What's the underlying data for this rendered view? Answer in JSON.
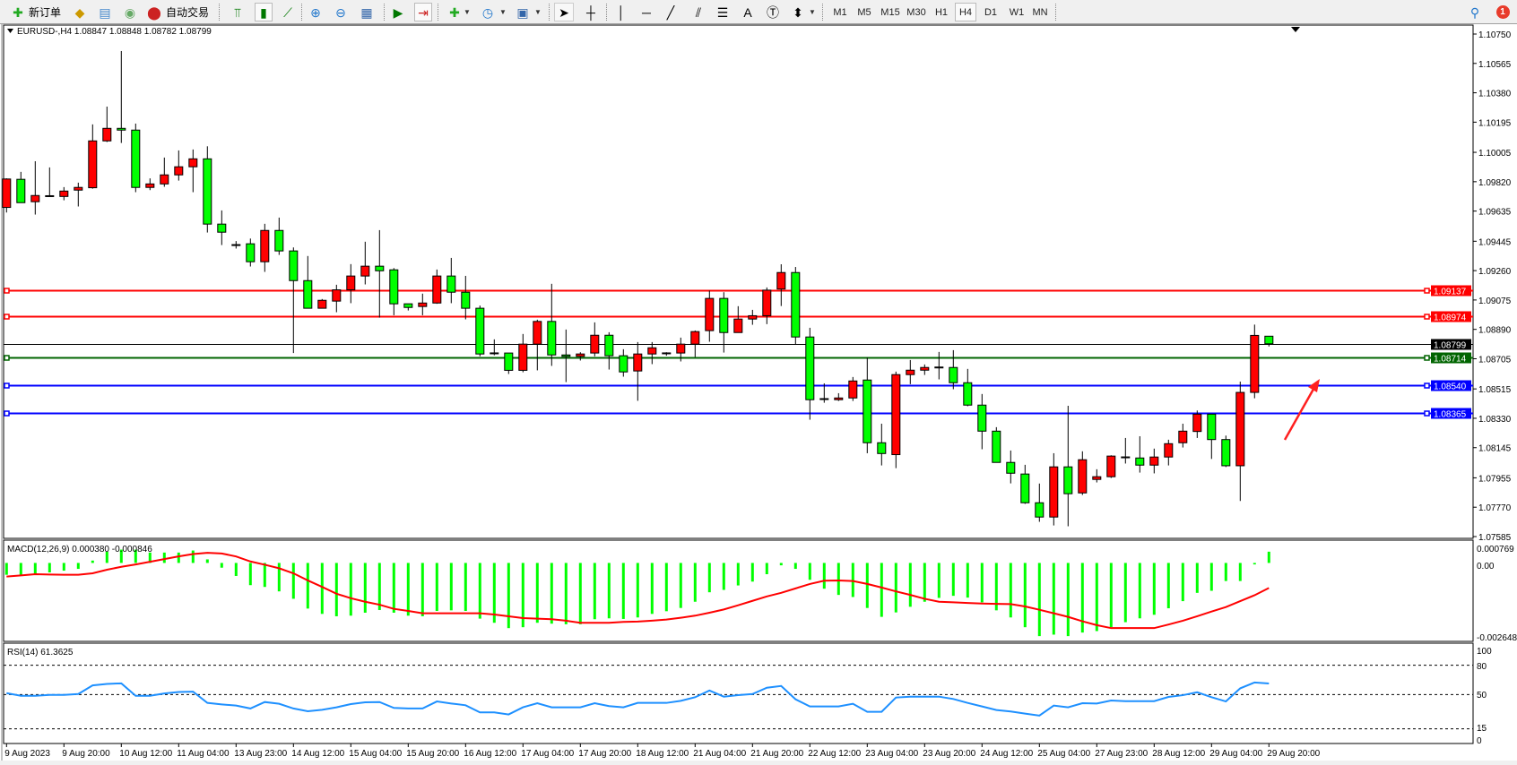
{
  "toolbar": {
    "new_order": "新订单",
    "auto_trading": "自动交易",
    "timeframes": [
      "M1",
      "M5",
      "M15",
      "M30",
      "H1",
      "H4",
      "D1",
      "W1",
      "MN"
    ],
    "active_timeframe": "H4",
    "notification_count": "1",
    "icons": [
      "new-order-icon",
      "history-center-icon",
      "data-window-icon",
      "signals-icon",
      "auto-trading-icon",
      "bar-chart-icon",
      "candlestick-icon",
      "line-chart-icon",
      "zoom-in-icon",
      "zoom-out-icon",
      "tile-windows-icon",
      "auto-scroll-icon",
      "chart-shift-icon",
      "indicators-icon",
      "periods-icon",
      "templates-icon",
      "cursor-icon",
      "crosshair-icon",
      "vertical-line-icon",
      "horizontal-line-icon",
      "trendline-icon",
      "equidistant-channel-icon",
      "fibonacci-icon",
      "text-icon",
      "text-label-icon",
      "arrows-icon",
      "search-icon",
      "notification-icon"
    ]
  },
  "colors": {
    "bull": "#ff0000",
    "bear": "#00ff00",
    "macd_hist": "#00ff00",
    "signal": "#ff0000",
    "rsi": "#1e90ff"
  },
  "chart_data": [
    {
      "type": "candlestick",
      "title": "EURUSD-,H4  1.08847 1.08848 1.08782 1.08799",
      "symbol": "EURUSD-",
      "timeframe": "H4",
      "ylim": [
        1.07585,
        1.1075
      ],
      "y_ticks": [
        "1.10750",
        "1.10565",
        "1.10380",
        "1.10195",
        "1.10005",
        "1.09820",
        "1.09635",
        "1.09445",
        "1.09260",
        "1.09075",
        "1.08890",
        "1.08705",
        "1.08515",
        "1.08330",
        "1.08145",
        "1.07955",
        "1.07770",
        "1.07585"
      ],
      "x_tick_labels": [
        "9 Aug 2023",
        "9 Aug 20:00",
        "10 Aug 12:00",
        "11 Aug 04:00",
        "13 Aug 23:00",
        "14 Aug 12:00",
        "15 Aug 04:00",
        "15 Aug 20:00",
        "16 Aug 12:00",
        "17 Aug 04:00",
        "17 Aug 20:00",
        "18 Aug 12:00",
        "21 Aug 04:00",
        "21 Aug 20:00",
        "22 Aug 12:00",
        "23 Aug 04:00",
        "23 Aug 20:00",
        "24 Aug 12:00",
        "25 Aug 04:00",
        "27 Aug 23:00",
        "28 Aug 12:00",
        "29 Aug 04:00",
        "29 Aug 20:00"
      ],
      "x_tick_every_bars": 4,
      "ohlc": [
        [
          1.09658,
          1.09841,
          1.09626,
          1.09837
        ],
        [
          1.09835,
          1.09882,
          1.09688,
          1.09688
        ],
        [
          1.09694,
          1.09949,
          1.09613,
          1.09733
        ],
        [
          1.09729,
          1.0991,
          1.09729,
          1.09729
        ],
        [
          1.09727,
          1.09786,
          1.09703,
          1.09761
        ],
        [
          1.09767,
          1.09814,
          1.09664,
          1.09784
        ],
        [
          1.09782,
          1.10181,
          1.09776,
          1.10077
        ],
        [
          1.10077,
          1.10293,
          1.1007,
          1.10156
        ],
        [
          1.10156,
          1.10643,
          1.10064,
          1.10145
        ],
        [
          1.10145,
          1.10186,
          1.09754,
          1.09784
        ],
        [
          1.09784,
          1.09841,
          1.09767,
          1.09806
        ],
        [
          1.09806,
          1.09972,
          1.09788,
          1.09863
        ],
        [
          1.09863,
          1.10017,
          1.09827,
          1.09914
        ],
        [
          1.09914,
          1.10023,
          1.09754,
          1.09964
        ],
        [
          1.09964,
          1.10043,
          1.095,
          1.09553
        ],
        [
          1.09553,
          1.09639,
          1.09421,
          1.09502
        ],
        [
          1.09421,
          1.09446,
          1.09399,
          1.09421
        ],
        [
          1.09429,
          1.09462,
          1.09286,
          1.09316
        ],
        [
          1.09316,
          1.09555,
          1.09252,
          1.09513
        ],
        [
          1.09513,
          1.09594,
          1.09359,
          1.09384
        ],
        [
          1.09384,
          1.09406,
          1.08741,
          1.09197
        ],
        [
          1.09197,
          1.09352,
          1.09023,
          1.09023
        ],
        [
          1.09023,
          1.09081,
          1.09023,
          1.09073
        ],
        [
          1.09068,
          1.09171,
          1.08998,
          1.09139
        ],
        [
          1.09139,
          1.09301,
          1.09055,
          1.09226
        ],
        [
          1.09226,
          1.09442,
          1.09173,
          1.09288
        ],
        [
          1.09288,
          1.09515,
          1.08964,
          1.09259
        ],
        [
          1.09265,
          1.09276,
          1.08979,
          1.09051
        ],
        [
          1.09051,
          1.09051,
          1.09009,
          1.09028
        ],
        [
          1.09034,
          1.09115,
          1.08979,
          1.09056
        ],
        [
          1.09056,
          1.09267,
          1.09051,
          1.09226
        ],
        [
          1.09226,
          1.0934,
          1.09055,
          1.09124
        ],
        [
          1.09124,
          1.09227,
          1.08953,
          1.09023
        ],
        [
          1.09023,
          1.0904,
          1.0872,
          1.08735
        ],
        [
          1.08739,
          1.08827,
          1.08727,
          1.08739
        ],
        [
          1.08741,
          1.08741,
          1.08609,
          1.08632
        ],
        [
          1.08632,
          1.08861,
          1.0862,
          1.08797
        ],
        [
          1.08797,
          1.08951,
          1.08632,
          1.0894
        ],
        [
          1.0894,
          1.09177,
          1.0866,
          1.08729
        ],
        [
          1.08729,
          1.08889,
          1.08558,
          1.0872
        ],
        [
          1.0872,
          1.08746,
          1.08694,
          1.08735
        ],
        [
          1.08741,
          1.08934,
          1.0872,
          1.08853
        ],
        [
          1.08853,
          1.08872,
          1.08637,
          1.08724
        ],
        [
          1.08724,
          1.08765,
          1.08592,
          1.08622
        ],
        [
          1.08628,
          1.0881,
          1.0844,
          1.08735
        ],
        [
          1.08735,
          1.0881,
          1.08671,
          1.08774
        ],
        [
          1.08739,
          1.08746,
          1.08724,
          1.08739
        ],
        [
          1.08741,
          1.08838,
          1.08688,
          1.08797
        ],
        [
          1.08797,
          1.08883,
          1.08716,
          1.08876
        ],
        [
          1.08882,
          1.09134,
          1.08812,
          1.09085
        ],
        [
          1.09085,
          1.09124,
          1.08744,
          1.0887
        ],
        [
          1.0887,
          1.09036,
          1.0887,
          1.08955
        ],
        [
          1.08955,
          1.09013,
          1.08919,
          1.08976
        ],
        [
          1.08976,
          1.09154,
          1.08923,
          1.09137
        ],
        [
          1.09144,
          1.093,
          1.09037,
          1.09248
        ],
        [
          1.09248,
          1.09283,
          1.08797,
          1.08842
        ],
        [
          1.08842,
          1.089,
          1.08321,
          1.08447
        ],
        [
          1.08451,
          1.0855,
          1.08428,
          1.08451
        ],
        [
          1.08447,
          1.08488,
          1.08439,
          1.08458
        ],
        [
          1.08458,
          1.0859,
          1.08439,
          1.08565
        ],
        [
          1.08571,
          1.08712,
          1.0811,
          1.08176
        ],
        [
          1.08176,
          1.08296,
          1.08033,
          1.08108
        ],
        [
          1.08101,
          1.08624,
          1.08016,
          1.08605
        ],
        [
          1.08605,
          1.08697,
          1.08545,
          1.08633
        ],
        [
          1.08633,
          1.08669,
          1.08603,
          1.0865
        ],
        [
          1.0865,
          1.08748,
          1.08575,
          1.0865
        ],
        [
          1.0865,
          1.08759,
          1.08513,
          1.08554
        ],
        [
          1.08554,
          1.08641,
          1.08406,
          1.08413
        ],
        [
          1.08413,
          1.08483,
          1.08135,
          1.08249
        ],
        [
          1.08249,
          1.08274,
          1.08052,
          1.08052
        ],
        [
          1.08052,
          1.08127,
          1.0792,
          1.07984
        ],
        [
          1.07979,
          1.08037,
          1.07791,
          1.07798
        ],
        [
          1.07798,
          1.07919,
          1.07678,
          1.07708
        ],
        [
          1.07708,
          1.0811,
          1.07655,
          1.08024
        ],
        [
          1.08024,
          1.08409,
          1.0765,
          1.07855
        ],
        [
          1.0786,
          1.08122,
          1.07847,
          1.08069
        ],
        [
          1.07945,
          1.08009,
          1.07926,
          1.07962
        ],
        [
          1.07962,
          1.08097,
          1.07954,
          1.08092
        ],
        [
          1.08084,
          1.08206,
          1.08045,
          1.08084
        ],
        [
          1.0808,
          1.08217,
          1.07988,
          1.08035
        ],
        [
          1.08035,
          1.08139,
          1.07983,
          1.08086
        ],
        [
          1.08086,
          1.08195,
          1.08033,
          1.0817
        ],
        [
          1.08176,
          1.08296,
          1.08146,
          1.08249
        ],
        [
          1.08247,
          1.08379,
          1.08206,
          1.08356
        ],
        [
          1.08356,
          1.08356,
          1.08074,
          1.08196
        ],
        [
          1.08196,
          1.08221,
          1.08023,
          1.08031
        ],
        [
          1.08031,
          1.08561,
          1.07809,
          1.08493
        ],
        [
          1.08493,
          1.0892,
          1.08456,
          1.08852
        ],
        [
          1.08847,
          1.08848,
          1.08782,
          1.08799
        ]
      ],
      "horizontal_lines": [
        {
          "price": "1.09137",
          "color": "#ff0000"
        },
        {
          "price": "1.08974",
          "color": "#ff0000"
        },
        {
          "price": "1.08799",
          "color": "#000000"
        },
        {
          "price": "1.08714",
          "color": "#006400"
        },
        {
          "price": "1.08540",
          "color": "#0000ff"
        },
        {
          "price": "1.08365",
          "color": "#0000ff"
        }
      ],
      "annotation": {
        "type": "arrow",
        "color": "#ff2020"
      }
    },
    {
      "type": "bar",
      "title": "MACD(12,26,9) 0.000380 -0.000846",
      "ylim": [
        -0.002648,
        0.000769
      ],
      "y_ticks": [
        "0.000769",
        "0.00",
        "-0.002648"
      ],
      "series": [
        {
          "kind": "histogram",
          "values": [
            -0.0004,
            -0.0004,
            -0.0004,
            -0.00032,
            -0.00026,
            -0.0002,
            8e-05,
            0.00038,
            0.00045,
            0.00045,
            0.00035,
            0.00035,
            0.00035,
            0.00042,
            0.00012,
            -0.00016,
            -0.00044,
            -0.00075,
            -0.00081,
            -0.00096,
            -0.00121,
            -0.00154,
            -0.00172,
            -0.0018,
            -0.00178,
            -0.00168,
            -0.00159,
            -0.00168,
            -0.00178,
            -0.0018,
            -0.00162,
            -0.0016,
            -0.00162,
            -0.00188,
            -0.00202,
            -0.0022,
            -0.00217,
            -0.00202,
            -0.00205,
            -0.00207,
            -0.00207,
            -0.0019,
            -0.00187,
            -0.00189,
            -0.00184,
            -0.00172,
            -0.00163,
            -0.00152,
            -0.00131,
            -0.00099,
            -0.00091,
            -0.00076,
            -0.00063,
            -0.00038,
            -8e-05,
            -0.0002,
            -0.00057,
            -0.00087,
            -0.00108,
            -0.00115,
            -0.00152,
            -0.00182,
            -0.00167,
            -0.00148,
            -0.00131,
            -0.00118,
            -0.00111,
            -0.00117,
            -0.00133,
            -0.0016,
            -0.00184,
            -0.00217,
            -0.00247,
            -0.00242,
            -0.00247,
            -0.00235,
            -0.0023,
            -0.00217,
            -0.002,
            -0.00187,
            -0.00175,
            -0.00153,
            -0.00129,
            -0.00101,
            -0.00094,
            -0.00061,
            -0.00061,
            -5e-05,
            0.00038
          ]
        },
        {
          "kind": "signal-line",
          "values": [
            -0.00046,
            -0.00042,
            -0.00038,
            -0.00039,
            -0.0004,
            -0.0004,
            -0.00035,
            -0.00023,
            -0.00013,
            -5e-05,
            4e-05,
            0.00013,
            0.00022,
            0.0003,
            0.00034,
            0.00032,
            0.00022,
            5e-05,
            -6e-05,
            -0.00018,
            -0.00035,
            -0.00059,
            -0.00081,
            -0.00104,
            -0.00119,
            -0.00131,
            -0.00141,
            -0.00155,
            -0.00162,
            -0.0017,
            -0.0017,
            -0.0017,
            -0.0017,
            -0.0017,
            -0.00174,
            -0.0018,
            -0.00186,
            -0.00188,
            -0.0019,
            -0.00195,
            -0.00202,
            -0.00202,
            -0.00202,
            -0.00199,
            -0.00198,
            -0.00195,
            -0.00191,
            -0.00185,
            -0.00178,
            -0.00168,
            -0.00157,
            -0.00143,
            -0.00128,
            -0.00113,
            -0.00101,
            -0.00086,
            -0.00071,
            -0.0006,
            -0.00059,
            -0.00061,
            -0.00071,
            -0.00083,
            -0.00096,
            -0.00108,
            -0.00121,
            -0.00131,
            -0.00133,
            -0.00135,
            -0.00137,
            -0.00138,
            -0.00139,
            -0.00147,
            -0.00158,
            -0.0017,
            -0.00182,
            -0.00197,
            -0.0021,
            -0.0022,
            -0.0022,
            -0.0022,
            -0.0022,
            -0.00208,
            -0.00195,
            -0.0018,
            -0.00164,
            -0.00149,
            -0.00129,
            -0.00109,
            -0.000846
          ]
        }
      ]
    },
    {
      "type": "line",
      "title": "RSI(14) 61.3625",
      "ylim": [
        0,
        100
      ],
      "y_ticks": [
        "100",
        "80",
        "50",
        "15",
        "0"
      ],
      "levels": [
        80,
        50,
        15
      ],
      "values": [
        51.5,
        48.8,
        48.8,
        49.7,
        49.7,
        50.6,
        59.4,
        60.9,
        61.5,
        48.8,
        48.8,
        51.2,
        52.7,
        53,
        41.5,
        40,
        38.8,
        35.8,
        42.4,
        40.6,
        35.8,
        33,
        34.5,
        37,
        40.3,
        42.1,
        42.4,
        36.4,
        35.8,
        35.8,
        43,
        40.9,
        39.1,
        31.8,
        31.8,
        29.7,
        37,
        41.2,
        37,
        37,
        37,
        41.2,
        38.2,
        37,
        41.5,
        41.5,
        41.5,
        43.6,
        47.3,
        54.2,
        47.9,
        49.4,
        50.6,
        57,
        58.8,
        45.2,
        37.9,
        37.9,
        37.9,
        40.6,
        32.4,
        32.4,
        47,
        47.9,
        47.9,
        47.9,
        45.5,
        41.5,
        37.9,
        34.2,
        32.7,
        30.6,
        28.5,
        38.8,
        37,
        41.2,
        40.9,
        43.9,
        43.3,
        43.3,
        43.3,
        47.6,
        49.4,
        52.4,
        47.3,
        43,
        56.4,
        62.4,
        61.36
      ]
    }
  ]
}
